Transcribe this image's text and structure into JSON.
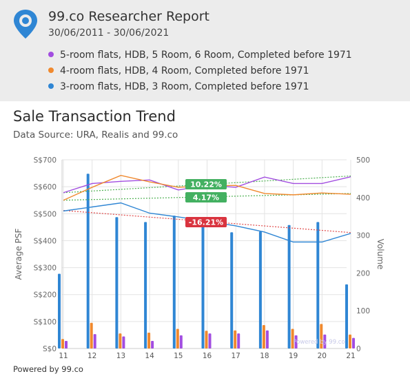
{
  "header": {
    "title": "99.co Researcher Report",
    "dates": "30/06/2011 - 30/06/2021",
    "legend": [
      {
        "label": "5-room flats, HDB, 5 Room, 6 Room, Completed before 1971",
        "color": "#a24de0"
      },
      {
        "label": "4-room flats, HDB, 4 Room, Completed before 1971",
        "color": "#f0892e"
      },
      {
        "label": "3-room flats, HDB, 3 Room, Completed before 1971",
        "color": "#2f86d4"
      }
    ]
  },
  "chart_title": "Sale Transaction Trend",
  "chart_subtitle": "Data Source: URA, Realis and 99.co",
  "footer": "Powered by 99.co",
  "chart_data": {
    "type": "line+bar",
    "categories": [
      "11",
      "12",
      "13",
      "14",
      "15",
      "16",
      "17",
      "18",
      "19",
      "20",
      "21"
    ],
    "ylabel_left": "Average PSF",
    "ylabel_right": "Volume",
    "yticks_left": [
      "S$0",
      "S$100",
      "S$200",
      "S$300",
      "S$400",
      "S$500",
      "S$600",
      "S$700"
    ],
    "yticks_right": [
      "0",
      "100",
      "200",
      "300",
      "400",
      "500"
    ],
    "ylim_left": [
      0,
      700
    ],
    "ylim_right": [
      0,
      500
    ],
    "grid": true,
    "watermark": "Powered by 99.co",
    "series": [
      {
        "name": "5-room flats, HDB, 5 Room, 6 Room, Completed before 1971",
        "color": "#a24de0",
        "psf": [
          578,
          612,
          620,
          625,
          588,
          605,
          598,
          636,
          612,
          612,
          637
        ],
        "volume": [
          20,
          38,
          32,
          20,
          35,
          40,
          40,
          48,
          35,
          37,
          28
        ]
      },
      {
        "name": "4-room flats, HDB, 4 Room, Completed before 1971",
        "color": "#f0892e",
        "psf": [
          550,
          598,
          642,
          618,
          598,
          603,
          605,
          575,
          570,
          577,
          572
        ],
        "volume": [
          25,
          68,
          40,
          42,
          52,
          47,
          48,
          62,
          52,
          65,
          37
        ]
      },
      {
        "name": "3-room flats, HDB, 3 Room, Completed before 1971",
        "color": "#2f86d4",
        "psf": [
          510,
          525,
          540,
          502,
          488,
          472,
          455,
          432,
          395,
          395,
          427
        ],
        "volume": [
          198,
          463,
          348,
          335,
          352,
          330,
          308,
          310,
          327,
          335,
          170
        ]
      }
    ],
    "trendlines": [
      {
        "color": "#4caf50",
        "from": 578,
        "to": 640,
        "label": "10.22%",
        "label_color": "#43b061"
      },
      {
        "color": "#4caf50",
        "from": 550,
        "to": 575,
        "label": "4.17%",
        "label_color": "#43b061"
      },
      {
        "color": "#e04848",
        "from": 512,
        "to": 430,
        "label": "-16.21%",
        "label_color": "#d9343f"
      }
    ]
  }
}
